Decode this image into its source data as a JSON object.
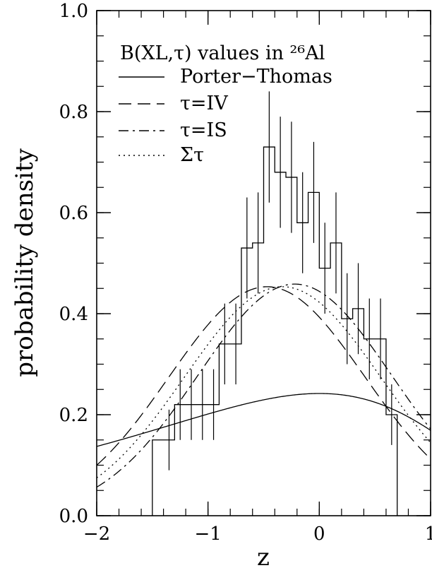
{
  "chart_data": {
    "type": "line",
    "xlabel": "z",
    "ylabel": "probability density",
    "xlim": [
      -2,
      1
    ],
    "ylim": [
      0,
      1
    ],
    "x_ticks": [
      "−2",
      "−1",
      "0",
      "1"
    ],
    "y_ticks": [
      "0.0",
      "0.2",
      "0.4",
      "0.6",
      "0.8",
      "1.0"
    ],
    "legend_title": "B(XL,τ) values in ²⁶Al",
    "legend_position": "top-left",
    "series": [
      {
        "name": "Porter−Thomas",
        "style": "solid",
        "curve": "porter-thomas"
      },
      {
        "name": "τ=IV",
        "style": "dashed",
        "mean": -0.47,
        "sd": 0.88
      },
      {
        "name": "τ=IS",
        "style": "dashdot",
        "mean": -0.22,
        "sd": 0.87
      },
      {
        "name": "Στ",
        "style": "dotted",
        "mean": -0.33,
        "sd": 0.88
      }
    ],
    "histogram": {
      "bin_width": 0.1,
      "bins": [
        {
          "x0": -1.5,
          "y": 0.15,
          "err": 0
        },
        {
          "x0": -1.4,
          "y": 0.15,
          "err": 0.06
        },
        {
          "x0": -1.3,
          "y": 0.22,
          "err": 0.07
        },
        {
          "x0": -1.2,
          "y": 0.22,
          "err": 0.07
        },
        {
          "x0": -1.1,
          "y": 0.22,
          "err": 0.07
        },
        {
          "x0": -1.0,
          "y": 0.22,
          "err": 0.07
        },
        {
          "x0": -0.9,
          "y": 0.34,
          "err": 0.08
        },
        {
          "x0": -0.8,
          "y": 0.34,
          "err": 0.08
        },
        {
          "x0": -0.7,
          "y": 0.53,
          "err": 0.1
        },
        {
          "x0": -0.6,
          "y": 0.54,
          "err": 0.1
        },
        {
          "x0": -0.5,
          "y": 0.73,
          "err": 0.11
        },
        {
          "x0": -0.4,
          "y": 0.68,
          "err": 0.11
        },
        {
          "x0": -0.3,
          "y": 0.67,
          "err": 0.11
        },
        {
          "x0": -0.2,
          "y": 0.58,
          "err": 0.1
        },
        {
          "x0": -0.1,
          "y": 0.64,
          "err": 0.1
        },
        {
          "x0": 0.0,
          "y": 0.49,
          "err": 0.09
        },
        {
          "x0": 0.1,
          "y": 0.54,
          "err": 0.1
        },
        {
          "x0": 0.2,
          "y": 0.39,
          "err": 0.09
        },
        {
          "x0": 0.3,
          "y": 0.41,
          "err": 0.09
        },
        {
          "x0": 0.4,
          "y": 0.35,
          "err": 0.08
        },
        {
          "x0": 0.5,
          "y": 0.35,
          "err": 0.08
        },
        {
          "x0": 0.6,
          "y": 0.2,
          "err": 0.06
        }
      ]
    }
  }
}
